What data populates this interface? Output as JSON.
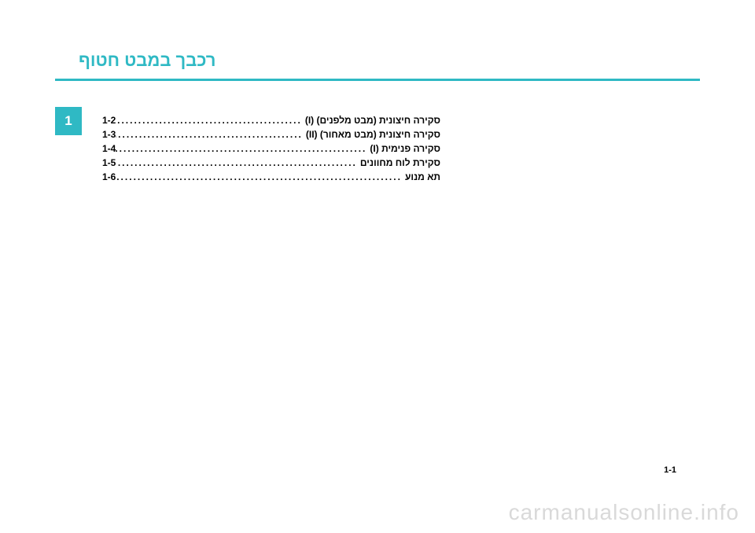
{
  "colors": {
    "accent": "#2fb9c4",
    "divider": "#2fb9c4",
    "tab_bg": "#2fb9c4",
    "text": "#000000",
    "watermark": "#d9d9d9"
  },
  "title": "רכבך במבט חטוף",
  "tab_number": "1",
  "toc": [
    {
      "label": "סקירה חיצונית (מבט מלפנים) (I)",
      "page": "1-2"
    },
    {
      "label": "סקירה חיצונית (מבט מאחור)  (II)",
      "page": "1-3"
    },
    {
      "label": "סקירה פנימית  (I)",
      "page": "1-4"
    },
    {
      "label": "סקירת לוח מחוונים",
      "page": "1-5"
    },
    {
      "label": "תא מנוע",
      "page": "1-6"
    }
  ],
  "page_number": "1-1",
  "watermark": "carmanualsonline.info",
  "dots": "................................................................................................"
}
